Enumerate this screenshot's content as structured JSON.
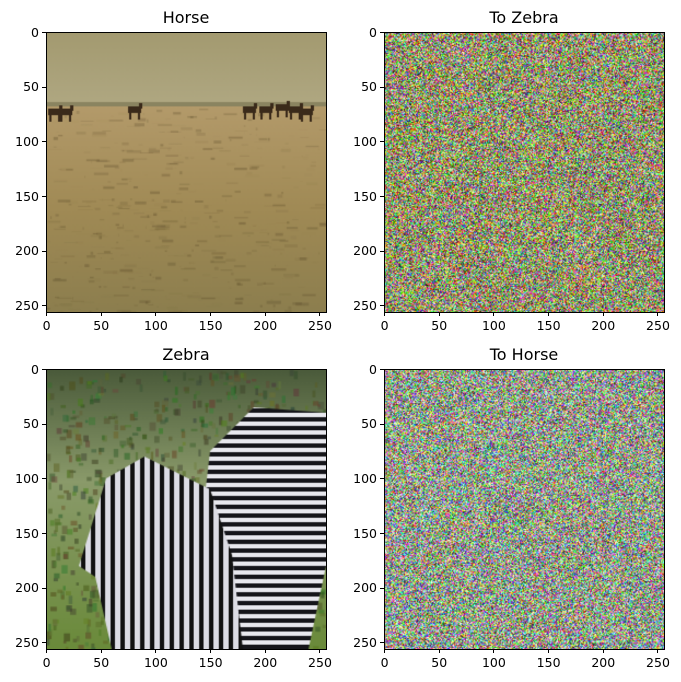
{
  "chart_data": [
    {
      "type": "image",
      "title": "Horse",
      "content": "photo of horses on a sandy beach",
      "xlim": [
        0,
        256
      ],
      "ylim": [
        256,
        0
      ],
      "xticks": [
        0,
        50,
        100,
        150,
        200,
        250
      ],
      "yticks": [
        0,
        50,
        100,
        150,
        200,
        250
      ]
    },
    {
      "type": "image",
      "title": "To Zebra",
      "content": "random multicolor noise",
      "xlim": [
        0,
        256
      ],
      "ylim": [
        256,
        0
      ],
      "xticks": [
        0,
        50,
        100,
        150,
        200,
        250
      ],
      "yticks": [
        0,
        50,
        100,
        150,
        200,
        250
      ]
    },
    {
      "type": "image",
      "title": "Zebra",
      "content": "photo of two zebras in grass",
      "xlim": [
        0,
        256
      ],
      "ylim": [
        256,
        0
      ],
      "xticks": [
        0,
        50,
        100,
        150,
        200,
        250
      ],
      "yticks": [
        0,
        50,
        100,
        150,
        200,
        250
      ]
    },
    {
      "type": "image",
      "title": "To Horse",
      "content": "random multicolor noise",
      "xlim": [
        0,
        256
      ],
      "ylim": [
        256,
        0
      ],
      "xticks": [
        0,
        50,
        100,
        150,
        200,
        250
      ],
      "yticks": [
        0,
        50,
        100,
        150,
        200,
        250
      ]
    }
  ]
}
